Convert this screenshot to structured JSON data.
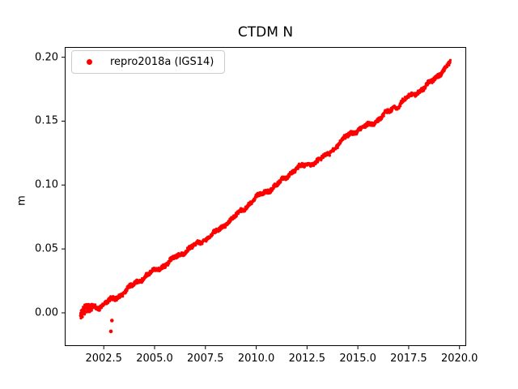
{
  "chart_data": {
    "type": "scatter",
    "title": "CTDM N",
    "xlabel": "",
    "ylabel": "m",
    "xlim": [
      2000.58,
      2020.33
    ],
    "ylim": [
      -0.026,
      0.208
    ],
    "xticks": [
      2002.5,
      2005.0,
      2007.5,
      2010.0,
      2012.5,
      2015.0,
      2017.5,
      2020.0
    ],
    "xtick_labels": [
      "2002.5",
      "2005.0",
      "2007.5",
      "2010.0",
      "2012.5",
      "2015.0",
      "2017.5",
      "2020.0"
    ],
    "yticks": [
      0.0,
      0.05,
      0.1,
      0.15,
      0.2
    ],
    "ytick_labels": [
      "0.00",
      "0.05",
      "0.10",
      "0.15",
      "0.20"
    ],
    "grid": false,
    "background_color": "#ffffff",
    "axes_edge_color": "#000000",
    "legend": {
      "position": "upper left",
      "frame_color": "#cccccc",
      "entries": [
        {
          "label": "repro2018a (IGS14)",
          "color": "#ff0000",
          "marker": "dot"
        }
      ]
    },
    "series": [
      {
        "name": "repro2018a (IGS14)",
        "color": "#ff0000",
        "marker": "dot",
        "description": "dense near-daily scatter forming a noisy linear band from about (2001.4, 0.00) to (2019.6, 0.195) m",
        "trend_anchors": [
          [
            2001.35,
            -0.001
          ],
          [
            2001.7,
            0.002
          ],
          [
            2002.0,
            0.0045
          ],
          [
            2002.3,
            0.005
          ],
          [
            2002.6,
            0.0085
          ],
          [
            2003.0,
            0.012
          ],
          [
            2003.4,
            0.015
          ],
          [
            2003.8,
            0.0195
          ],
          [
            2004.2,
            0.024
          ],
          [
            2004.6,
            0.029
          ],
          [
            2005.0,
            0.0335
          ],
          [
            2005.4,
            0.0375
          ],
          [
            2005.8,
            0.0415
          ],
          [
            2006.2,
            0.045
          ],
          [
            2006.6,
            0.0485
          ],
          [
            2007.0,
            0.052
          ],
          [
            2007.4,
            0.0565
          ],
          [
            2007.8,
            0.0615
          ],
          [
            2008.2,
            0.066
          ],
          [
            2008.6,
            0.0715
          ],
          [
            2009.0,
            0.0755
          ],
          [
            2009.4,
            0.0805
          ],
          [
            2009.8,
            0.0875
          ],
          [
            2010.2,
            0.0925
          ],
          [
            2010.6,
            0.097
          ],
          [
            2011.0,
            0.1005
          ],
          [
            2011.4,
            0.105
          ],
          [
            2011.8,
            0.1105
          ],
          [
            2012.2,
            0.1135
          ],
          [
            2012.6,
            0.116
          ],
          [
            2013.0,
            0.1195
          ],
          [
            2013.4,
            0.1235
          ],
          [
            2013.8,
            0.1285
          ],
          [
            2014.2,
            0.134
          ],
          [
            2014.6,
            0.139
          ],
          [
            2015.0,
            0.1425
          ],
          [
            2015.4,
            0.146
          ],
          [
            2015.8,
            0.15
          ],
          [
            2016.2,
            0.1545
          ],
          [
            2016.6,
            0.158
          ],
          [
            2017.0,
            0.162
          ],
          [
            2017.4,
            0.167
          ],
          [
            2017.8,
            0.1715
          ],
          [
            2018.2,
            0.1765
          ],
          [
            2018.6,
            0.181
          ],
          [
            2019.0,
            0.187
          ],
          [
            2019.3,
            0.191
          ],
          [
            2019.55,
            0.195
          ]
        ],
        "outliers": [
          [
            2002.9,
            -0.006
          ],
          [
            2002.85,
            -0.0145
          ]
        ],
        "x_start": 2001.35,
        "x_end": 2019.55
      }
    ]
  }
}
